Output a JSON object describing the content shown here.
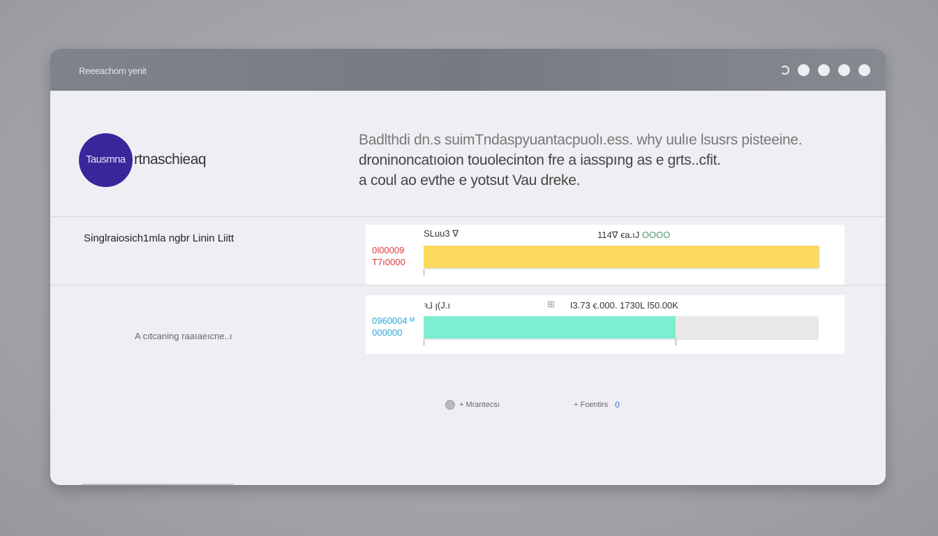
{
  "window": {
    "title": "Reeeachom yenit",
    "controls": [
      "minimize-icon",
      "circle-icon",
      "circle-icon",
      "circle-icon",
      "user-icon"
    ]
  },
  "header": {
    "avatar_text": "Tausmna",
    "brand": "rtnaschieaq",
    "description": [
      "Badlthdi dn.s suimTndaspyuantacpuolı.ess. why uulıe lsusrs pisteeine.",
      "droninoncatıoion touolecinton fre a iasspıng as e grts..cfit.",
      "a coul ao evthe e yotsut Vau dreke."
    ]
  },
  "rows": [
    {
      "label": "Singlraiosich1mla ngbr Linin Liitt",
      "card": {
        "head_left": "SLuu3 ∇",
        "head_right": "114∇ ꞓa.ıJ",
        "head_right_accent": "OOOO",
        "values": [
          "0l00009",
          "T7ı0000"
        ],
        "value_color": "#d93a3a",
        "fill_color": "#fad95e",
        "progress": 1.0
      }
    },
    {
      "label": "A cıtcaning raaıaeıcne..ı",
      "card": {
        "head_left": "ꝛ⅃ ꞁ(J.ı",
        "head_icon": "chart-icon",
        "head_right": "ǀ3.73 ꞓ.000. 1730L ǀ50.00K",
        "values": [
          "0960004 ᴹ",
          "000000"
        ],
        "value_color": "#2aa6d6",
        "fill_color": "#7eeed0",
        "progress": 0.64
      }
    }
  ],
  "legend": [
    {
      "label": "+ Mrantecsı"
    },
    {
      "label": "+ Foentirs",
      "count": "0"
    }
  ]
}
